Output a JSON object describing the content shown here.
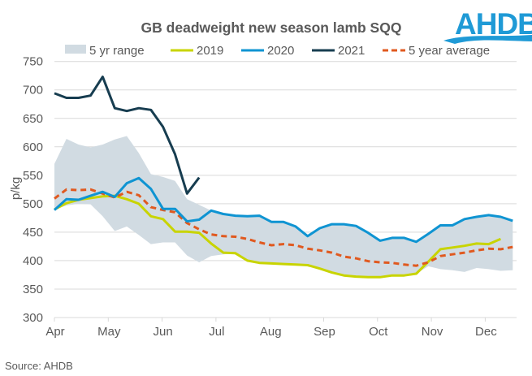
{
  "chart_data": {
    "type": "line",
    "title": "GB deadweight new season lamb SQQ",
    "xlabel": "",
    "ylabel": "p/kg",
    "ylim": [
      300,
      750
    ],
    "yticks": [
      300,
      350,
      400,
      450,
      500,
      550,
      600,
      650,
      700,
      750
    ],
    "xtick_labels": [
      "Apr",
      "May",
      "Jun",
      "Jul",
      "Aug",
      "Sep",
      "Oct",
      "Nov",
      "Dec"
    ],
    "x_unit": "week index from start of April (weekly observations)",
    "grid": true,
    "legend_position": "top",
    "source": "Source: AHDB",
    "logo": "AHDB",
    "range": {
      "name": "5 yr range",
      "color": "#d1dbe2",
      "upper": [
        570,
        614,
        604,
        599,
        604,
        613,
        619,
        589,
        552,
        547,
        540,
        508,
        498,
        488,
        482,
        479,
        478,
        479,
        468,
        468,
        460,
        443,
        457,
        464,
        464,
        461,
        449,
        435,
        440,
        440,
        433,
        447,
        462,
        462,
        473,
        477,
        480,
        477,
        470
      ],
      "lower": [
        490,
        497,
        500,
        499,
        478,
        452,
        460,
        445,
        429,
        432,
        432,
        409,
        397,
        408,
        411,
        413,
        400,
        396,
        395,
        394,
        393,
        392,
        386,
        379,
        374,
        372,
        371,
        371,
        374,
        374,
        377,
        390,
        385,
        383,
        380,
        387,
        385,
        382,
        383
      ]
    },
    "series": [
      {
        "name": "2019",
        "color": "#c8d400",
        "dashed": false,
        "values": [
          490,
          501,
          507,
          510,
          513,
          514,
          508,
          500,
          478,
          473,
          451,
          451,
          449,
          430,
          414,
          413,
          400,
          396,
          395,
          394,
          393,
          392,
          386,
          379,
          374,
          372,
          371,
          371,
          374,
          374,
          377,
          398,
          420,
          423,
          426,
          430,
          429,
          438
        ]
      },
      {
        "name": "2020",
        "color": "#0f94d2",
        "dashed": false,
        "values": [
          489,
          508,
          507,
          514,
          521,
          512,
          536,
          545,
          526,
          491,
          491,
          469,
          472,
          488,
          482,
          479,
          478,
          479,
          468,
          468,
          460,
          443,
          457,
          464,
          464,
          461,
          449,
          435,
          440,
          440,
          433,
          447,
          462,
          462,
          473,
          477,
          480,
          477,
          470
        ]
      },
      {
        "name": "2021",
        "color": "#173d50",
        "dashed": false,
        "values": [
          694,
          686,
          686,
          690,
          723,
          668,
          663,
          668,
          665,
          635,
          587,
          518,
          546
        ]
      },
      {
        "name": "5 year average",
        "color": "#e0591f",
        "dashed": true,
        "values": [
          509,
          525,
          524,
          525,
          518,
          511,
          521,
          515,
          494,
          489,
          485,
          466,
          455,
          446,
          443,
          442,
          438,
          432,
          427,
          429,
          427,
          421,
          418,
          414,
          407,
          404,
          399,
          397,
          396,
          393,
          391,
          397,
          408,
          411,
          414,
          418,
          421,
          420,
          424
        ]
      }
    ]
  }
}
